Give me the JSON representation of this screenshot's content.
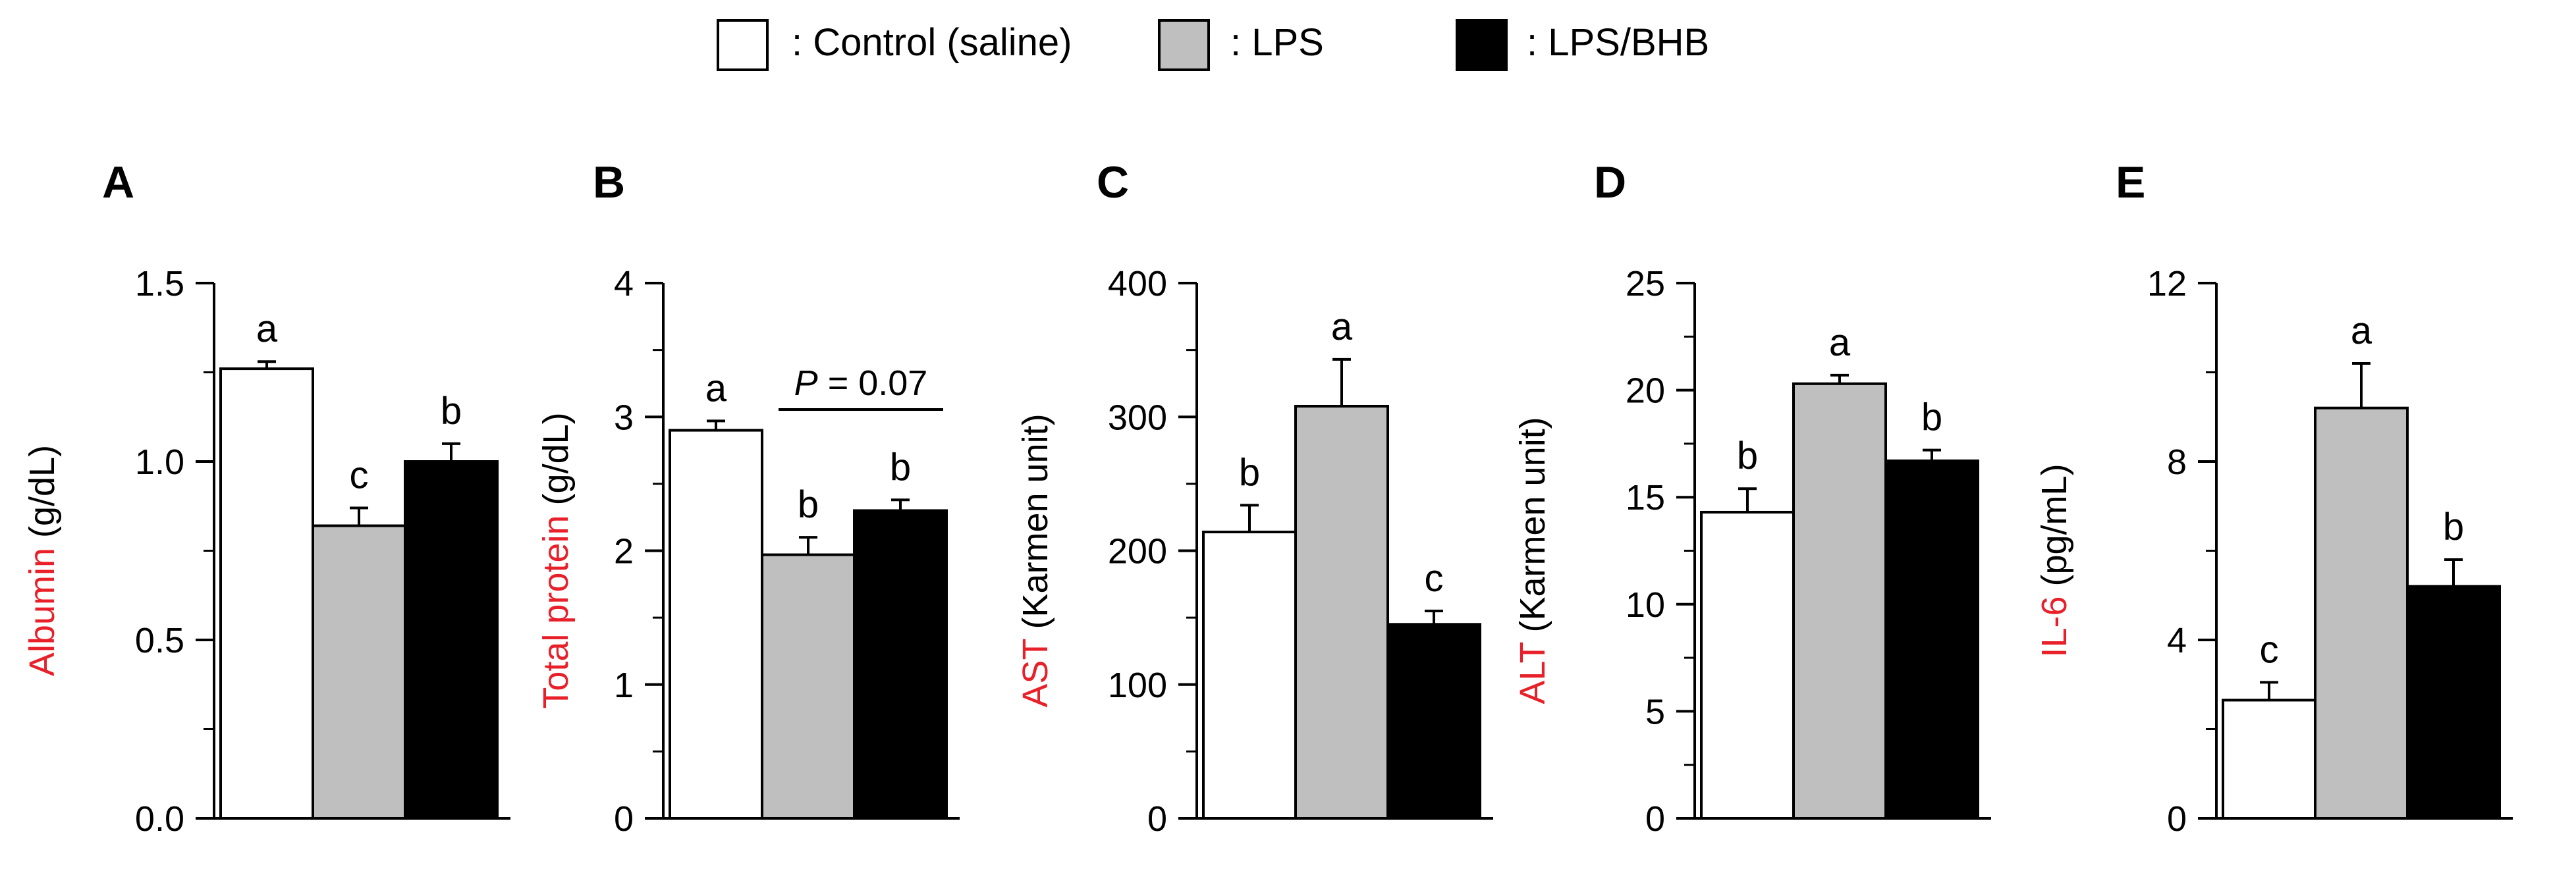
{
  "legend": {
    "items": [
      {
        "label": ": Control (saline)",
        "swatch": "#ffffff"
      },
      {
        "label": ": LPS",
        "swatch": "#bfbfbf"
      },
      {
        "label": ": LPS/BHB",
        "swatch": "#000000"
      }
    ]
  },
  "colors": {
    "control": "#ffffff",
    "lps": "#bfbfbf",
    "lps_bhb": "#000000",
    "ylabel_analyte": "#e8202a",
    "axis": "#000000"
  },
  "chart_data": [
    {
      "panel": "A",
      "type": "bar",
      "ylabel_analyte": "Albumin",
      "ylabel_unit": "(g/dL)",
      "ylim": [
        0,
        1.5
      ],
      "ticks": [
        0.0,
        0.5,
        1.0,
        1.5
      ],
      "tick_labels": [
        "0.0",
        "0.5",
        "1.0",
        "1.5"
      ],
      "minor_ticks": [
        0.25,
        0.75,
        1.25
      ],
      "categories": [
        "Control (saline)",
        "LPS",
        "LPS/BHB"
      ],
      "values": [
        1.26,
        0.82,
        1.0
      ],
      "errors": [
        0.02,
        0.05,
        0.05
      ],
      "letters": [
        "a",
        "c",
        "b"
      ]
    },
    {
      "panel": "B",
      "type": "bar",
      "ylabel_analyte": "Total protein",
      "ylabel_unit": "(g/dL)",
      "ylim": [
        0,
        4
      ],
      "ticks": [
        0,
        1,
        2,
        3,
        4
      ],
      "tick_labels": [
        "0",
        "1",
        "2",
        "3",
        "4"
      ],
      "minor_ticks": [
        0.5,
        1.5,
        2.5,
        3.5
      ],
      "categories": [
        "Control (saline)",
        "LPS",
        "LPS/BHB"
      ],
      "values": [
        2.9,
        1.97,
        2.3
      ],
      "errors": [
        0.07,
        0.13,
        0.08
      ],
      "letters": [
        "a",
        "b",
        "b"
      ],
      "annotation": {
        "p_italic": "P",
        "p_rest": " = 0.07",
        "between": [
          1,
          2
        ]
      }
    },
    {
      "panel": "C",
      "type": "bar",
      "ylabel_analyte": "AST",
      "ylabel_unit": "(Karmen unit)",
      "ylim": [
        0,
        400
      ],
      "ticks": [
        0,
        100,
        200,
        300,
        400
      ],
      "tick_labels": [
        "0",
        "100",
        "200",
        "300",
        "400"
      ],
      "minor_ticks": [
        50,
        150,
        250,
        350
      ],
      "categories": [
        "Control (saline)",
        "LPS",
        "LPS/BHB"
      ],
      "values": [
        214,
        308,
        145
      ],
      "errors": [
        20,
        35,
        10
      ],
      "letters": [
        "b",
        "a",
        "c"
      ]
    },
    {
      "panel": "D",
      "type": "bar",
      "ylabel_analyte": "ALT",
      "ylabel_unit": "(Karmen unit)",
      "ylim": [
        0,
        25
      ],
      "ticks": [
        0,
        5,
        10,
        15,
        20,
        25
      ],
      "tick_labels": [
        "0",
        "5",
        "10",
        "15",
        "20",
        "25"
      ],
      "minor_ticks": [
        2.5,
        7.5,
        12.5,
        17.5,
        22.5
      ],
      "categories": [
        "Control (saline)",
        "LPS",
        "LPS/BHB"
      ],
      "values": [
        14.3,
        20.3,
        16.7
      ],
      "errors": [
        1.1,
        0.4,
        0.5
      ],
      "letters": [
        "b",
        "a",
        "b"
      ]
    },
    {
      "panel": "E",
      "type": "bar",
      "ylabel_analyte": "IL-6",
      "ylabel_unit": "(pg/mL)",
      "ylim": [
        0,
        12
      ],
      "ticks": [
        0,
        4,
        8,
        12
      ],
      "tick_labels": [
        "0",
        "4",
        "8",
        "12"
      ],
      "minor_ticks": [
        2,
        6,
        10
      ],
      "categories": [
        "Control (saline)",
        "LPS",
        "LPS/BHB"
      ],
      "values": [
        2.65,
        9.2,
        5.2
      ],
      "errors": [
        0.4,
        1.0,
        0.6
      ],
      "letters": [
        "c",
        "a",
        "b"
      ]
    }
  ]
}
